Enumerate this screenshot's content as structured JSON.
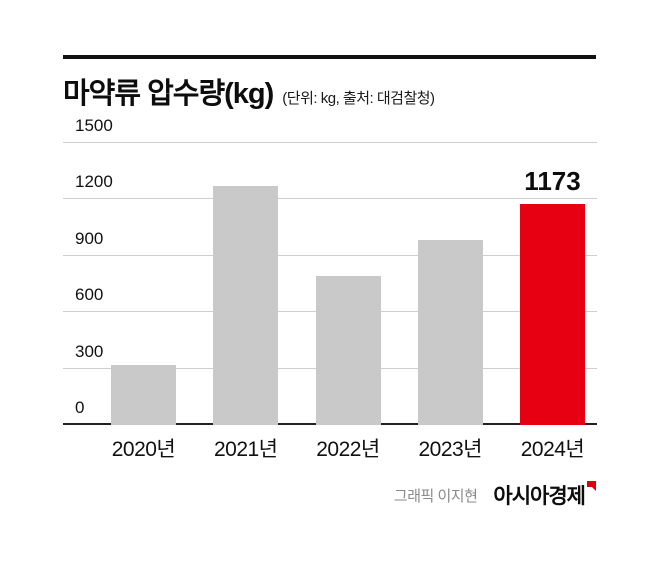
{
  "header": {
    "title": "마약류 압수량(kg)",
    "subtitle": "(단위: kg, 출처: 대검찰청)"
  },
  "chart_data": {
    "type": "bar",
    "title": "마약류 압수량(kg)",
    "unit_note": "(단위: kg, 출처: 대검찰청)",
    "categories": [
      "2020년",
      "2021년",
      "2022년",
      "2023년",
      "2024년"
    ],
    "values": [
      320,
      1270,
      795,
      985,
      1173
    ],
    "ylim": [
      0,
      1500
    ],
    "yticks": [
      0,
      300,
      600,
      900,
      1200,
      1500
    ],
    "grid": true,
    "bar_color": "#c9c9ca",
    "highlight_color": "#e60012",
    "highlight_index": 4,
    "annotation": {
      "index": 4,
      "text": "1173"
    }
  },
  "footer": {
    "credit": "그래픽 이지현",
    "brand": "아시아경제"
  }
}
